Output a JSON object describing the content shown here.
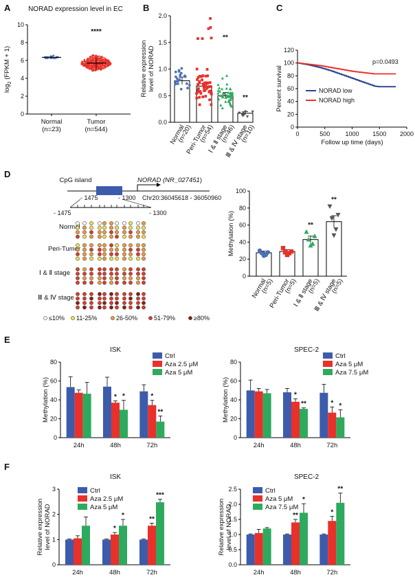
{
  "panels": {
    "A": {
      "label": "A",
      "chart_data": {
        "type": "scatter",
        "title": "NORAD expression level in EC",
        "ylabel_parts": [
          "log",
          "2",
          " (FPKM + 1)"
        ],
        "ylim": [
          0,
          10
        ],
        "yticks": [
          0,
          2,
          4,
          6,
          8,
          10
        ],
        "categories": [
          "Normal",
          "Tumor"
        ],
        "category_sublabels": [
          "(n=23)",
          "(n=544)"
        ],
        "n": [
          23,
          544
        ],
        "medians": [
          6.35,
          5.7
        ],
        "spread": [
          0.25,
          1.3
        ],
        "colors": [
          "#4a72b8",
          "#e8312a"
        ],
        "annotations": [
          {
            "category": "Tumor",
            "text": "****"
          }
        ]
      }
    },
    "B": {
      "label": "B",
      "chart_data": {
        "type": "bar",
        "ylabel": [
          "Relative expression",
          "level of NORAD"
        ],
        "ylim": [
          0,
          2.0
        ],
        "yticks": [
          "0.0",
          "0.5",
          "1.0",
          "1.5",
          "2.0"
        ],
        "categories": [
          "Normal",
          "Peri-Tumor",
          "Ⅰ & Ⅱ stage",
          "Ⅲ & Ⅳ stage"
        ],
        "category_sublabels": [
          "(n=20)",
          "(n=54)",
          "(n=46)",
          "(n=10)"
        ],
        "n": [
          20,
          54,
          46,
          10
        ],
        "values": [
          0.78,
          0.68,
          0.5,
          0.17
        ],
        "errors": [
          0.07,
          0.05,
          0.06,
          0.03
        ],
        "markers": [
          "circle",
          "square",
          "triangle",
          "triangle-down"
        ],
        "colors": [
          "#4a72b8",
          "#e8312a",
          "#2eaa5e",
          "#555555"
        ],
        "annotations": [
          "",
          "",
          "**",
          "**"
        ]
      }
    },
    "C": {
      "label": "C",
      "chart_data": {
        "type": "line",
        "xlabel": "Follow up time (days)",
        "ylabel": "Percent survival",
        "xlim": [
          0,
          2000
        ],
        "ylim": [
          0,
          120
        ],
        "xticks": [
          0,
          500,
          1000,
          1500,
          2000
        ],
        "yticks": [
          0,
          20,
          40,
          60,
          80,
          100,
          120
        ],
        "series": [
          {
            "name": "NORAD low",
            "color": "#2b3f8f",
            "x": [
              0,
              200,
              400,
              600,
              800,
              1000,
              1200,
              1400,
              1500,
              1800
            ],
            "y": [
              100,
              97,
              93,
              88,
              82,
              76,
              70,
              64,
              63,
              63
            ]
          },
          {
            "name": "NORAD high",
            "color": "#e8312a",
            "x": [
              0,
              200,
              400,
              600,
              800,
              1000,
              1200,
              1400,
              1500,
              1800
            ],
            "y": [
              100,
              98,
              96,
              93,
              90,
              87,
              85,
              83,
              83,
              83
            ]
          }
        ],
        "annotation": "p=0.0493"
      }
    },
    "D": {
      "label": "D",
      "diagram": {
        "cpg_label": "CpG island",
        "gene_label": "NORAD",
        "gene_accession": "NR_027451",
        "chr_label": "Chr20:36045618 - 36050960",
        "pos_left": "- 1475",
        "pos_right": "- 1300",
        "ruler_left": "- 1475",
        "ruler_right": "- 1300",
        "rows": [
          "Normal",
          "Peri-Tumor",
          "Ⅰ & Ⅱ stage",
          "Ⅲ & Ⅳ stage"
        ],
        "legend": [
          {
            "label": "≤10%",
            "color": "#ffffff"
          },
          {
            "label": "11-25%",
            "color": "#f2e24a"
          },
          {
            "label": "26-50%",
            "color": "#f29a3a"
          },
          {
            "label": "51-79%",
            "color": "#e03a2a"
          },
          {
            "label": "≥80%",
            "color": "#8a1c14"
          }
        ],
        "lollipops": [
          [
            [
              0,
              1,
              2,
              3
            ],
            [
              0,
              2,
              2,
              1
            ],
            [
              1,
              1,
              3,
              2
            ],
            [
              0,
              1,
              2,
              2
            ],
            [
              2,
              1,
              2,
              1
            ],
            [
              2,
              2,
              3,
              2
            ]
          ],
          [
            [
              1,
              1,
              2,
              3
            ],
            [
              1,
              2,
              2,
              2
            ],
            [
              2,
              2,
              3,
              2
            ],
            [
              1,
              2,
              3,
              3
            ],
            [
              1,
              2,
              2,
              2
            ],
            [
              2,
              3,
              2,
              3
            ]
          ],
          [
            [
              2,
              2,
              3,
              3
            ],
            [
              3,
              3,
              2,
              3
            ],
            [
              2,
              3,
              3,
              3
            ],
            [
              2,
              3,
              3,
              3
            ],
            [
              2,
              2,
              3,
              3
            ],
            [
              3,
              3,
              3,
              3
            ]
          ],
          [
            [
              3,
              3,
              4,
              3
            ],
            [
              3,
              4,
              3,
              3
            ],
            [
              3,
              3,
              4,
              3
            ],
            [
              4,
              3,
              3,
              4
            ],
            [
              3,
              3,
              4,
              3
            ],
            [
              3,
              4,
              3,
              4
            ]
          ]
        ]
      },
      "chart_data": {
        "type": "bar",
        "ylabel": "Methylation (%)",
        "ylim": [
          0,
          100
        ],
        "yticks": [
          0,
          20,
          40,
          60,
          80,
          100
        ],
        "categories": [
          "Normal",
          "Peri-Tumor",
          "Ⅰ & Ⅱ stage",
          "Ⅲ & Ⅳ stage"
        ],
        "category_sublabels": [
          "(n=5)",
          "(n=5)",
          "(n=5)",
          "(n=5)"
        ],
        "values": [
          27.5,
          29,
          43,
          64
        ],
        "errors": [
          2,
          2,
          4,
          7
        ],
        "points": [
          [
            30,
            28,
            27,
            25,
            24
          ],
          [
            33,
            29,
            28,
            27,
            25
          ],
          [
            52,
            47,
            43,
            38,
            36
          ],
          [
            82,
            72,
            68,
            55,
            48
          ]
        ],
        "markers": [
          "circle",
          "square",
          "triangle",
          "triangle-down"
        ],
        "colors": [
          "#4a72b8",
          "#e8312a",
          "#2eaa5e",
          "#555555"
        ],
        "annotations": [
          "",
          "",
          "**",
          "**"
        ]
      }
    },
    "E": {
      "label": "E",
      "chart_data": [
        {
          "type": "bar",
          "title": "ISK",
          "ylabel": "Methylation (%)",
          "ylim": [
            0,
            80
          ],
          "yticks": [
            0,
            20,
            40,
            60,
            80
          ],
          "categories": [
            "24h",
            "48h",
            "72h"
          ],
          "series": [
            {
              "name": "Ctrl",
              "color": "#3d5bab",
              "values": [
                53.5,
                54,
                49
              ],
              "errors": [
                11,
                10,
                7
              ]
            },
            {
              "name": "Aza 2.5 μM",
              "color": "#e8312a",
              "values": [
                47.5,
                37,
                34.5
              ],
              "errors": [
                3,
                2,
                5
              ]
            },
            {
              "name": "Aza 5 μM",
              "color": "#2eaa5e",
              "values": [
                46.5,
                29.5,
                17
              ],
              "errors": [
                12,
                10,
                6
              ]
            }
          ],
          "annotations": [
            [
              "",
              "",
              ""
            ],
            [
              "",
              "*",
              "*"
            ],
            [
              "",
              "*",
              "**"
            ]
          ]
        },
        {
          "type": "bar",
          "title": "SPEC-2",
          "ylabel": "Methylation (%)",
          "ylim": [
            0,
            80
          ],
          "yticks": [
            0,
            20,
            40,
            60,
            80
          ],
          "categories": [
            "24h",
            "48h",
            "72h"
          ],
          "series": [
            {
              "name": "Ctrl",
              "color": "#3d5bab",
              "values": [
                50,
                48,
                47.5
              ],
              "errors": [
                11,
                4,
                9
              ]
            },
            {
              "name": "Aza 5 μM",
              "color": "#e8312a",
              "values": [
                49,
                38,
                26.5
              ],
              "errors": [
                3,
                3,
                6
              ]
            },
            {
              "name": "Aza 7.5 μM",
              "color": "#2eaa5e",
              "values": [
                47,
                30.5,
                21.5
              ],
              "errors": [
                4,
                1,
                8
              ]
            }
          ],
          "annotations": [
            [
              "",
              "",
              ""
            ],
            [
              "",
              "*",
              "*"
            ],
            [
              "",
              "**",
              "*"
            ]
          ]
        }
      ]
    },
    "F": {
      "label": "F",
      "chart_data": [
        {
          "type": "bar",
          "title": "ISK",
          "ylabel": [
            "Relative expression",
            "level of NORAD"
          ],
          "ylim": [
            0,
            3
          ],
          "yticks": [
            "0",
            "1",
            "2",
            "3"
          ],
          "categories": [
            "24h",
            "48h",
            "72h"
          ],
          "series": [
            {
              "name": "Ctrl",
              "color": "#3d5bab",
              "values": [
                1,
                1,
                1
              ],
              "errors": [
                0.02,
                0.02,
                0.02
              ]
            },
            {
              "name": "Aza 2.5 μM",
              "color": "#e8312a",
              "values": [
                1.05,
                1.2,
                1.55
              ],
              "errors": [
                0.1,
                0.08,
                0.1
              ]
            },
            {
              "name": "Aza 5 μM",
              "color": "#2eaa5e",
              "values": [
                1.55,
                1.55,
                2.48
              ],
              "errors": [
                0.35,
                0.25,
                0.12
              ]
            }
          ],
          "annotations": [
            [
              "",
              "",
              ""
            ],
            [
              "",
              "*",
              "**"
            ],
            [
              "",
              "*",
              "***"
            ]
          ]
        },
        {
          "type": "bar",
          "title": "SPEC-2",
          "ylabel": [
            "Relative expression",
            "level of NORAD"
          ],
          "ylim": [
            0,
            2.5
          ],
          "yticks": [
            "0.0",
            "0.5",
            "1.0",
            "1.5",
            "2.0",
            "2.5"
          ],
          "categories": [
            "24h",
            "48h",
            "72h"
          ],
          "series": [
            {
              "name": "Ctrl",
              "color": "#3d5bab",
              "values": [
                1,
                1,
                1
              ],
              "errors": [
                0.02,
                0.02,
                0.02
              ]
            },
            {
              "name": "Aza 5 μM",
              "color": "#e8312a",
              "values": [
                1.05,
                1.4,
                1.45
              ],
              "errors": [
                0.12,
                0.1,
                0.15
              ]
            },
            {
              "name": "Aza 7.5 μM",
              "color": "#2eaa5e",
              "values": [
                1.2,
                1.72,
                2.05
              ],
              "errors": [
                0.03,
                0.3,
                0.32
              ]
            }
          ],
          "annotations": [
            [
              "",
              "",
              ""
            ],
            [
              "",
              "**",
              "*"
            ],
            [
              "",
              "*",
              "**"
            ]
          ]
        }
      ]
    }
  }
}
